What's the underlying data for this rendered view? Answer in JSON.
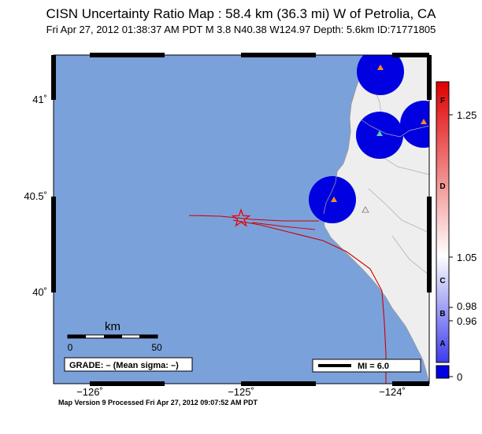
{
  "header": {
    "title": "CISN Uncertainty Ratio Map : 58.4 km (36.3 mi) W of Petrolia, CA",
    "subtitle": "Fri Apr 27, 2012 01:38:37 AM PDT   M 3.8   N40.38 W124.97   Depth: 5.6km   ID:71771805"
  },
  "map": {
    "ocean_color": "#7ba1db",
    "land_color": "#eeeeee",
    "station_blob_color": "#0000e0",
    "fault_color": "#cc0000",
    "epicenter_color": "#ee0000",
    "lat_labels": [
      "41˚",
      "40.5˚",
      "40˚"
    ],
    "lon_labels": [
      "−126˚",
      "−125˚",
      "−124˚"
    ],
    "scale_bar": {
      "unit": "km",
      "start": "0",
      "end": "50"
    },
    "grade_label": "GRADE: – (Mean sigma: –)",
    "mi_legend": "MI = 6.0",
    "epicenter": {
      "lat": 40.38,
      "lon": -124.97
    }
  },
  "colorbar": {
    "top_color": "#e00000",
    "mid_color": "#ffffff",
    "bottom_color": "#0000e0",
    "letters": [
      "F",
      "D",
      "C",
      "B",
      "A"
    ],
    "values": [
      "1.25",
      "1.05",
      "0.98",
      "0.96",
      "0"
    ]
  },
  "footer": {
    "text": "Map Version 9 Processed Fri Apr 27, 2012 09:07:52 AM PDT"
  }
}
